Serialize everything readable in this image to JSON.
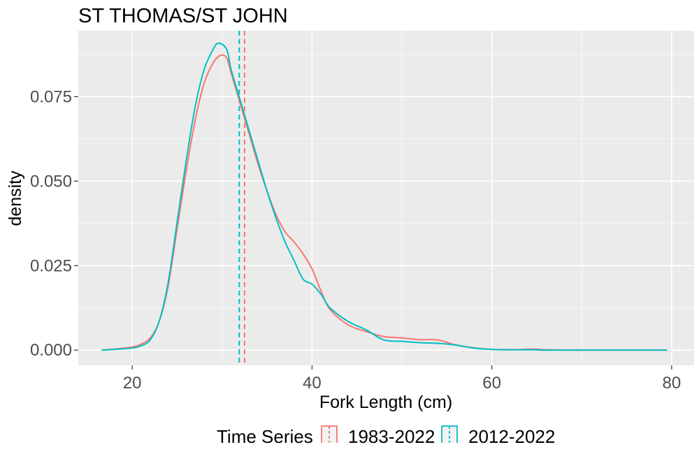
{
  "chart_data": {
    "type": "line",
    "title": "ST THOMAS/ST JOHN",
    "xlabel": "Fork Length (cm)",
    "ylabel": "density",
    "xlim": [
      14,
      82.5
    ],
    "ylim": [
      -0.0045,
      0.0945
    ],
    "x_ticks": [
      20,
      40,
      60,
      80
    ],
    "x_tick_labels": [
      "20",
      "40",
      "60",
      "80"
    ],
    "y_ticks": [
      0.0,
      0.025,
      0.05,
      0.075
    ],
    "y_tick_labels": [
      "0.000",
      "0.025",
      "0.050",
      "0.075"
    ],
    "grid": true,
    "legend": {
      "title": "Time Series",
      "placement": "bottom",
      "entries": [
        "1983-2022",
        "2012-2022"
      ]
    },
    "series": [
      {
        "name": "1983-2022",
        "color": "#F8766D",
        "mean_line": 32.5,
        "x": [
          16.6,
          18,
          20,
          21,
          22,
          23,
          24,
          25,
          26,
          27,
          28,
          29,
          29.8,
          30.5,
          31,
          32,
          33,
          34,
          35,
          36,
          37,
          38,
          39,
          40,
          41,
          42,
          44,
          46,
          48,
          50,
          52,
          54,
          56,
          58,
          60,
          62,
          64.7,
          66,
          70,
          75,
          79.5
        ],
        "y": [
          0.0,
          0.0003,
          0.0009,
          0.0018,
          0.0036,
          0.0085,
          0.019,
          0.036,
          0.053,
          0.068,
          0.079,
          0.085,
          0.0872,
          0.0865,
          0.082,
          0.073,
          0.064,
          0.055,
          0.047,
          0.04,
          0.035,
          0.032,
          0.0285,
          0.024,
          0.0175,
          0.012,
          0.0075,
          0.0055,
          0.004,
          0.0036,
          0.0031,
          0.003,
          0.0015,
          0.0007,
          0.0002,
          0.0001,
          0.0003,
          0.0001,
          0.0,
          0.0,
          0.0
        ]
      },
      {
        "name": "2012-2022",
        "color": "#00BFC4",
        "mean_line": 31.9,
        "x": [
          16.6,
          18,
          20,
          21,
          22,
          23,
          24,
          25,
          26,
          27,
          28,
          29,
          29.6,
          30.5,
          31,
          32,
          33,
          34,
          35,
          36,
          37,
          38,
          39,
          40,
          41,
          42,
          44,
          46,
          48,
          50,
          52,
          54,
          56,
          58,
          60,
          62,
          64.7,
          66,
          70,
          75,
          79.5
        ],
        "y": [
          0.0,
          0.0002,
          0.0006,
          0.0013,
          0.003,
          0.0085,
          0.02,
          0.038,
          0.056,
          0.072,
          0.083,
          0.089,
          0.0908,
          0.089,
          0.083,
          0.074,
          0.065,
          0.056,
          0.047,
          0.039,
          0.032,
          0.0265,
          0.021,
          0.0195,
          0.0165,
          0.0125,
          0.0085,
          0.006,
          0.003,
          0.0026,
          0.0022,
          0.002,
          0.0015,
          0.0006,
          0.0002,
          0.0001,
          0.0001,
          0.0,
          0.0,
          0.0,
          0.0
        ]
      }
    ]
  }
}
